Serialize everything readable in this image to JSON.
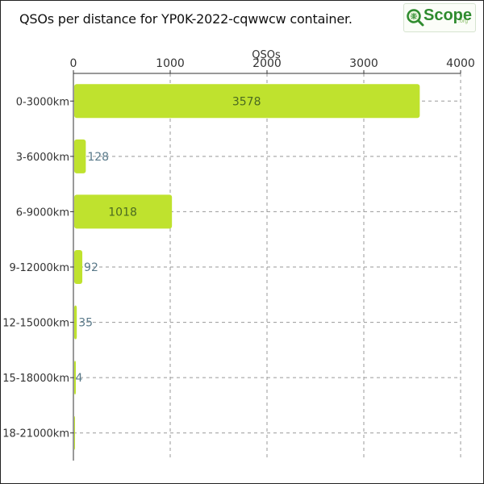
{
  "logo": {
    "text": "Scope",
    "suffix": ".org"
  },
  "chart_data": {
    "type": "bar",
    "orientation": "horizontal",
    "title": "QSOs per distance for YP0K-2022-cqwwcw container.",
    "xlabel": "QSOs",
    "ylabel": "",
    "xlim": [
      0,
      4000
    ],
    "xticks": [
      0,
      1000,
      2000,
      3000,
      4000
    ],
    "xaxis_position": "top",
    "grid": true,
    "categories": [
      "0-3000km",
      "3-6000km",
      "6-9000km",
      "9-12000km",
      "12-15000km",
      "15-18000km",
      "18-21000km"
    ],
    "values": [
      3578,
      128,
      1018,
      92,
      35,
      4,
      0
    ],
    "value_labels": [
      "3578",
      "128",
      "1018",
      "92",
      "35",
      "4",
      ""
    ],
    "bar_color": "#bfe22e",
    "label_color_inside": "#4a6a20",
    "label_color_outside": "#5a7a8a"
  }
}
